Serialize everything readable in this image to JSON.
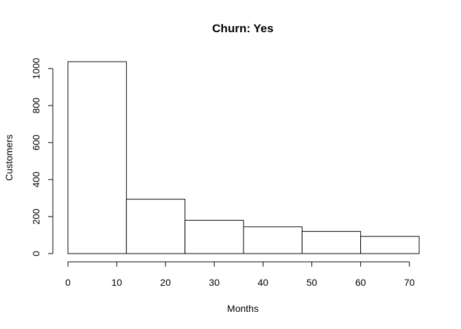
{
  "chart_data": {
    "type": "bar",
    "title": "Churn: Yes",
    "xlabel": "Months",
    "ylabel": "Customers",
    "bins": [
      {
        "x0": 0,
        "x1": 12,
        "value": 1037
      },
      {
        "x0": 12,
        "x1": 24,
        "value": 294
      },
      {
        "x0": 24,
        "x1": 36,
        "value": 180
      },
      {
        "x0": 36,
        "x1": 48,
        "value": 145
      },
      {
        "x0": 48,
        "x1": 60,
        "value": 120
      },
      {
        "x0": 60,
        "x1": 72,
        "value": 93
      }
    ],
    "xlim": [
      0,
      72
    ],
    "ylim": [
      0,
      1037
    ],
    "xticks": [
      0,
      10,
      20,
      30,
      40,
      50,
      60,
      70
    ],
    "yticks": [
      0,
      200,
      400,
      600,
      800,
      1000
    ],
    "grid": false,
    "colors": {
      "bar_fill": "#ffffff",
      "bar_stroke": "#000000"
    }
  }
}
